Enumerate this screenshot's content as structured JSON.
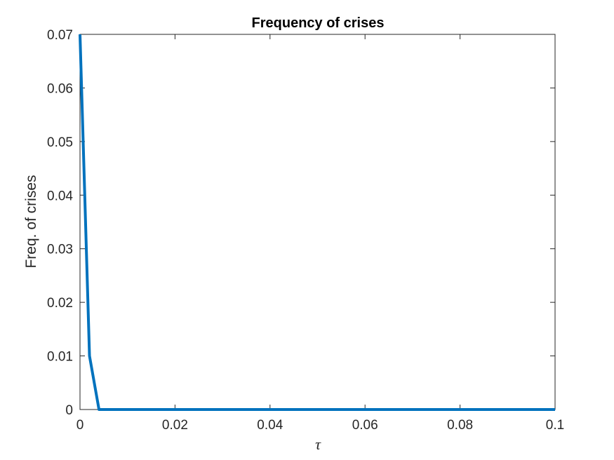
{
  "chart_data": {
    "type": "line",
    "title": "Frequency of crises",
    "xlabel": "τ",
    "ylabel": "Freq. of crises",
    "xlim": [
      0,
      0.1
    ],
    "ylim": [
      0,
      0.07
    ],
    "xticks": [
      0,
      0.02,
      0.04,
      0.06,
      0.08,
      0.1
    ],
    "xtick_labels": [
      "0",
      "0.02",
      "0.04",
      "0.06",
      "0.08",
      "0.1"
    ],
    "yticks": [
      0,
      0.01,
      0.02,
      0.03,
      0.04,
      0.05,
      0.06,
      0.07
    ],
    "ytick_labels": [
      "0",
      "0.01",
      "0.02",
      "0.03",
      "0.04",
      "0.05",
      "0.06",
      "0.07"
    ],
    "grid": false,
    "series": [
      {
        "color": "#0072BD",
        "x": [
          0,
          0.002,
          0.004,
          0.006,
          0.01,
          0.02,
          0.03,
          0.04,
          0.05,
          0.06,
          0.07,
          0.08,
          0.09,
          0.1
        ],
        "y": [
          0.07,
          0.01,
          0,
          0,
          0,
          0,
          0,
          0,
          0,
          0,
          0,
          0,
          0,
          0
        ]
      }
    ]
  }
}
